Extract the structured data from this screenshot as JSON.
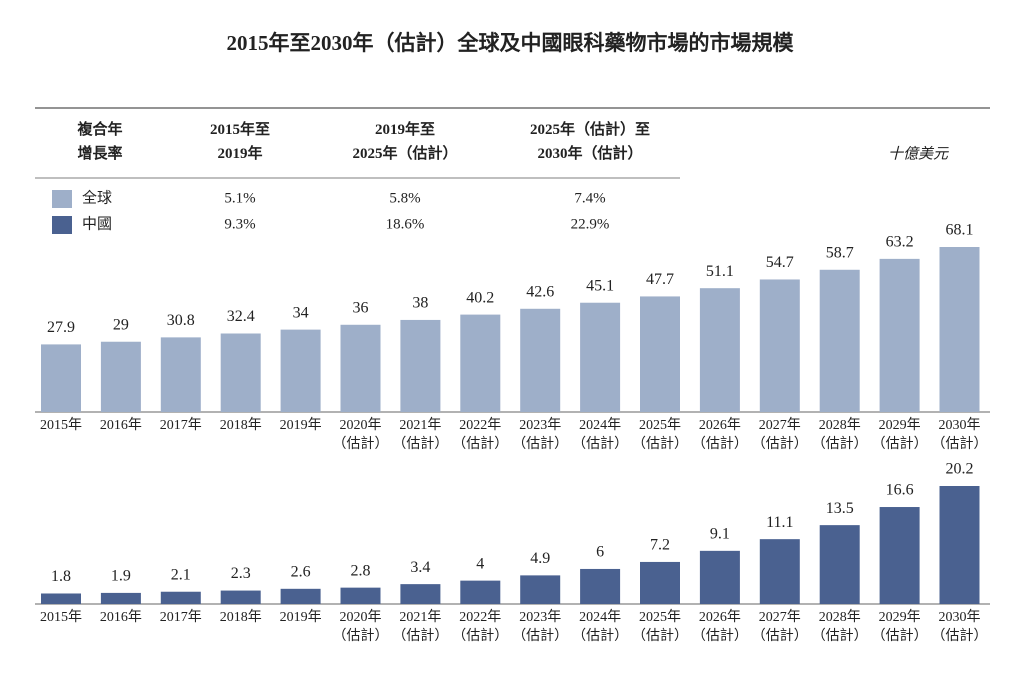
{
  "title": "2015年至2030年（估計）全球及中國眼科藥物市場的市場規模",
  "unit": "十億美元",
  "cagr_table": {
    "header": [
      "複合年\n增長率",
      "2015年至\n2019年",
      "2019年至\n2025年（估計）",
      "2025年（估計）至\n2030年（估計）"
    ],
    "rows": [
      {
        "name": "全球",
        "cells": [
          "5.1%",
          "5.8%",
          "7.4%"
        ]
      },
      {
        "name": "中國",
        "cells": [
          "9.3%",
          "18.6%",
          "22.9%"
        ]
      }
    ]
  },
  "chart_data": [
    {
      "type": "bar",
      "color": "#9eafc9",
      "categories": [
        "2015年",
        "2016年",
        "2017年",
        "2018年",
        "2019年",
        "2020年\n（估計）",
        "2021年\n（估計）",
        "2022年\n（估計）",
        "2023年\n（估計）",
        "2024年\n（估計）",
        "2025年\n（估計）",
        "2026年\n（估計）",
        "2027年\n（估計）",
        "2028年\n（估計）",
        "2029年\n（估計）",
        "2030年\n（估計）"
      ],
      "values": [
        27.9,
        29.0,
        30.8,
        32.4,
        34.0,
        36.0,
        38.0,
        40.2,
        42.6,
        45.1,
        47.7,
        51.1,
        54.7,
        58.7,
        63.2,
        68.1
      ]
    },
    {
      "type": "bar",
      "color": "#4a6190",
      "categories": [
        "2015年",
        "2016年",
        "2017年",
        "2018年",
        "2019年",
        "2020年\n（估計）",
        "2021年\n（估計）",
        "2022年\n（估計）",
        "2023年\n（估計）",
        "2024年\n（估計）",
        "2025年\n（估計）",
        "2026年\n（估計）",
        "2027年\n（估計）",
        "2028年\n（估計）",
        "2029年\n（估計）",
        "2030年\n（估計）"
      ],
      "values": [
        1.8,
        1.9,
        2.1,
        2.3,
        2.6,
        2.8,
        3.4,
        4.0,
        4.9,
        6.0,
        7.2,
        9.1,
        11.1,
        13.5,
        16.6,
        20.2
      ]
    }
  ]
}
